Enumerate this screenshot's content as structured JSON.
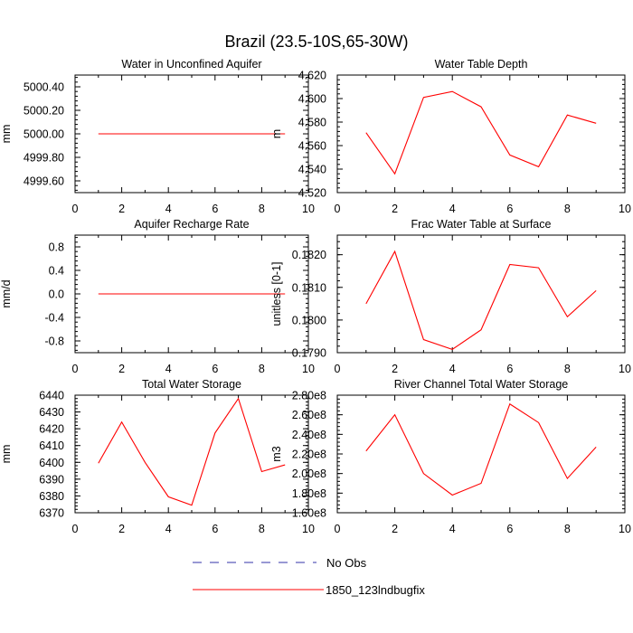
{
  "figure_title": "Brazil (23.5-10S,65-30W)",
  "legend": {
    "items": [
      {
        "label": "No Obs",
        "color": "#3333aa",
        "style": "dashed"
      },
      {
        "label": "1850_123lndbugfix",
        "color": "#ff0000",
        "style": "solid"
      }
    ]
  },
  "chart_data": [
    {
      "type": "line",
      "title": "Water in Unconfined Aquifer",
      "ylabel": "mm",
      "xlim": [
        0,
        10
      ],
      "ylim": [
        4999.5,
        5000.5
      ],
      "xticks": [
        0,
        2,
        4,
        6,
        8,
        10
      ],
      "yticks": [
        4999.6,
        4999.8,
        5000.0,
        5000.2,
        5000.4
      ],
      "ytick_labels": [
        "4999.60",
        "4999.80",
        "5000.00",
        "5000.20",
        "5000.40"
      ],
      "x": [
        1,
        2,
        3,
        4,
        5,
        6,
        7,
        8,
        9
      ],
      "series": [
        {
          "name": "1850_123lndbugfix",
          "color": "#ff0000",
          "values": [
            5000.0,
            5000.0,
            5000.0,
            5000.0,
            5000.0,
            5000.0,
            5000.0,
            5000.0,
            5000.0
          ]
        }
      ]
    },
    {
      "type": "line",
      "title": "Water Table Depth",
      "ylabel": "m",
      "xlim": [
        0,
        10
      ],
      "ylim": [
        4.52,
        4.62
      ],
      "xticks": [
        0,
        2,
        4,
        6,
        8,
        10
      ],
      "yticks": [
        4.52,
        4.54,
        4.56,
        4.58,
        4.6,
        4.62
      ],
      "ytick_labels": [
        "4.520",
        "4.540",
        "4.560",
        "4.580",
        "4.600",
        "4.620"
      ],
      "x": [
        1,
        2,
        3,
        4,
        5,
        6,
        7,
        8,
        9
      ],
      "series": [
        {
          "name": "1850_123lndbugfix",
          "color": "#ff0000",
          "values": [
            4.571,
            4.536,
            4.601,
            4.606,
            4.593,
            4.552,
            4.542,
            4.586,
            4.579
          ]
        }
      ]
    },
    {
      "type": "line",
      "title": "Aquifer Recharge Rate",
      "ylabel": "mm/d",
      "xlim": [
        0,
        10
      ],
      "ylim": [
        -1.0,
        1.0
      ],
      "xticks": [
        0,
        2,
        4,
        6,
        8,
        10
      ],
      "yticks": [
        -0.8,
        -0.4,
        0.0,
        0.4,
        0.8
      ],
      "ytick_labels": [
        "-0.8",
        "-0.4",
        "0.0",
        "0.4",
        "0.8"
      ],
      "x": [
        1,
        2,
        3,
        4,
        5,
        6,
        7,
        8,
        9
      ],
      "series": [
        {
          "name": "1850_123lndbugfix",
          "color": "#ff0000",
          "values": [
            0,
            0,
            0,
            0,
            0,
            0,
            0,
            0,
            0
          ]
        }
      ]
    },
    {
      "type": "line",
      "title": "Frac Water Table at Surface",
      "ylabel": "unitless [0-1]",
      "xlim": [
        0,
        10
      ],
      "ylim": [
        0.179,
        0.1826
      ],
      "xticks": [
        0,
        2,
        4,
        6,
        8,
        10
      ],
      "yticks": [
        0.179,
        0.18,
        0.181,
        0.182
      ],
      "ytick_labels": [
        "0.1790",
        "0.1800",
        "0.1810",
        "0.1820"
      ],
      "x": [
        1,
        2,
        3,
        4,
        5,
        6,
        7,
        8,
        9
      ],
      "series": [
        {
          "name": "1850_123lndbugfix",
          "color": "#ff0000",
          "values": [
            0.1805,
            0.1821,
            0.1794,
            0.1791,
            0.1797,
            0.1817,
            0.1816,
            0.1801,
            0.1809
          ]
        }
      ]
    },
    {
      "type": "line",
      "title": "Total Water Storage",
      "ylabel": "mm",
      "xlim": [
        0,
        10
      ],
      "ylim": [
        6370,
        6440
      ],
      "xticks": [
        0,
        2,
        4,
        6,
        8,
        10
      ],
      "yticks": [
        6370,
        6380,
        6390,
        6400,
        6410,
        6420,
        6430,
        6440
      ],
      "ytick_labels": [
        "6370",
        "6380",
        "6390",
        "6400",
        "6410",
        "6420",
        "6430",
        "6440"
      ],
      "x": [
        1,
        2,
        3,
        4,
        5,
        6,
        7,
        8,
        9
      ],
      "series": [
        {
          "name": "1850_123lndbugfix",
          "color": "#ff0000",
          "values": [
            6399.5,
            6424,
            6400,
            6379.5,
            6374.5,
            6417.5,
            6438,
            6394.5,
            6398.5
          ]
        }
      ]
    },
    {
      "type": "line",
      "title": "River Channel Total Water Storage",
      "ylabel": "m3",
      "xlim": [
        0,
        10
      ],
      "ylim": [
        160000000,
        280000000
      ],
      "xticks": [
        0,
        2,
        4,
        6,
        8,
        10
      ],
      "yticks": [
        160000000,
        180000000,
        200000000,
        220000000,
        240000000,
        260000000,
        280000000
      ],
      "ytick_labels": [
        "1.60e8",
        "1.80e8",
        "2.00e8",
        "2.20e8",
        "2.40e8",
        "2.60e8",
        "2.80e8"
      ],
      "x": [
        1,
        2,
        3,
        4,
        5,
        6,
        7,
        8,
        9
      ],
      "series": [
        {
          "name": "1850_123lndbugfix",
          "color": "#ff0000",
          "values": [
            223000000,
            260000000,
            200000000,
            178000000,
            190000000,
            271000000,
            252000000,
            195000000,
            227000000
          ]
        }
      ]
    }
  ]
}
